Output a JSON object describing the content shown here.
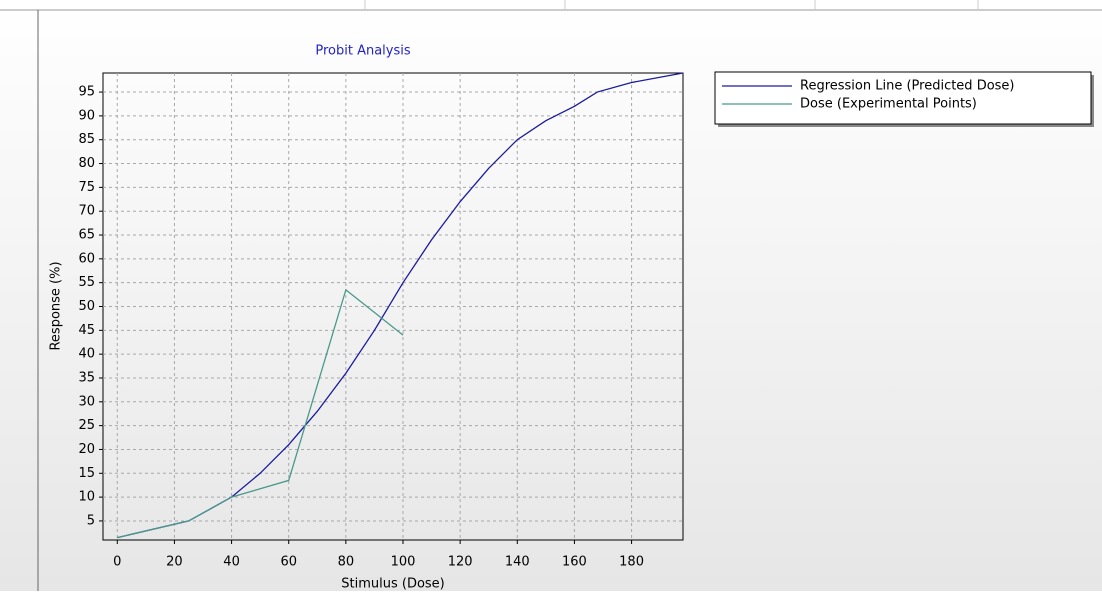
{
  "chart_data": {
    "type": "line",
    "title": "Probit Analysis",
    "xlabel": "Stimulus (Dose)",
    "ylabel": "Response (%)",
    "xlim": [
      -5,
      198
    ],
    "ylim": [
      1,
      99
    ],
    "xticks": [
      0,
      20,
      40,
      60,
      80,
      100,
      120,
      140,
      160,
      180
    ],
    "yticks": [
      5,
      10,
      15,
      20,
      25,
      30,
      35,
      40,
      45,
      50,
      55,
      60,
      65,
      70,
      75,
      80,
      85,
      90,
      95
    ],
    "grid": true,
    "legend": "outside-right",
    "series": [
      {
        "name": "Regression Line (Predicted Dose)",
        "color": "#1a1aa0",
        "x": [
          0,
          25,
          40,
          50,
          60,
          70,
          80,
          90,
          100,
          110,
          120,
          130,
          140,
          150,
          160,
          168,
          180,
          198
        ],
        "values": [
          1.5,
          5,
          10,
          15,
          21,
          28,
          36,
          45,
          55,
          64,
          72,
          79,
          85,
          89,
          92,
          95,
          97,
          99
        ]
      },
      {
        "name": "Dose (Experimental Points)",
        "color": "#4a9a8a",
        "x": [
          0,
          25,
          40,
          60,
          80,
          100
        ],
        "values": [
          1.5,
          5,
          10,
          13.5,
          53.5,
          44
        ]
      }
    ]
  }
}
